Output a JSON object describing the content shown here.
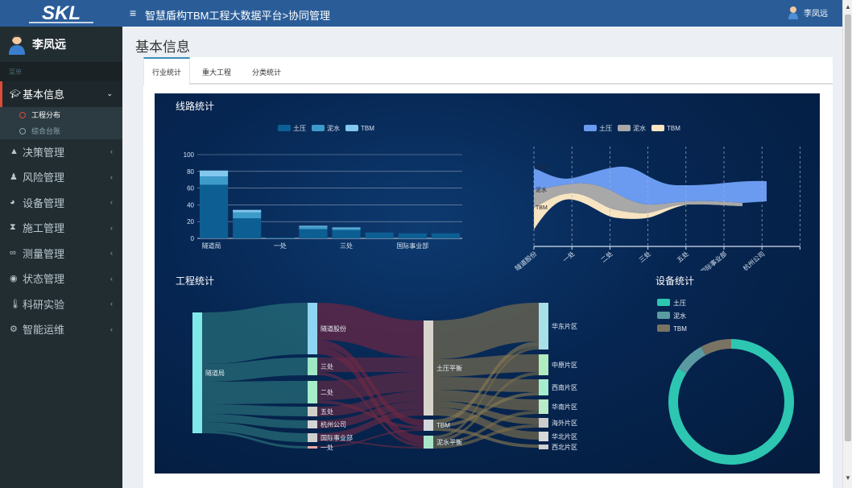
{
  "app": {
    "brand": "SKL",
    "breadcrumb": "智慧盾构TBM工程大数据平台>协同管理",
    "current_user": "李凤远"
  },
  "sidebar": {
    "username": "李凤远",
    "menu_header": "菜单",
    "items": [
      {
        "label": "基本信息",
        "icon": "graduation-cap-icon",
        "active": true,
        "children": [
          {
            "label": "工程分布",
            "active": true
          },
          {
            "label": "综合台账",
            "active": false
          }
        ]
      },
      {
        "label": "决策管理",
        "icon": "graduation-cap-icon"
      },
      {
        "label": "风险管理",
        "icon": "bell-icon"
      },
      {
        "label": "设备管理",
        "icon": "pie-chart-icon"
      },
      {
        "label": "施工管理",
        "icon": "hourglass-icon"
      },
      {
        "label": "测量管理",
        "icon": "binoculars-icon"
      },
      {
        "label": "状态管理",
        "icon": "dashboard-icon"
      },
      {
        "label": "科研实验",
        "icon": "thermometer-icon"
      },
      {
        "label": "智能运维",
        "icon": "gear-icon"
      }
    ]
  },
  "page": {
    "title": "基本信息",
    "tabs": [
      {
        "label": "行业统计",
        "active": true
      },
      {
        "label": "重大工程",
        "active": false
      },
      {
        "label": "分类统计",
        "active": false
      }
    ]
  },
  "dashboard": {
    "line_stats_title": "线路统计",
    "project_stats_title": "工程统计",
    "equipment_stats_title": "设备统计"
  },
  "colors": {
    "topbar": "#2a5d98",
    "sidebar": "#222d32",
    "active_marker": "#dd4b39",
    "dashboard_bg": "#062652",
    "earth_pressure": "#2dc6b1",
    "slurry": "#5b9aa0",
    "tbm": "#7a7363"
  },
  "chart_data": [
    {
      "type": "bar",
      "stacked": true,
      "title": "",
      "categories": [
        "隧道局",
        "",
        "一处",
        "",
        "三处",
        "",
        "国际事业部",
        ""
      ],
      "x_tick_labels_shown": [
        "隧道局",
        "一处",
        "三处",
        "国际事业部"
      ],
      "series": [
        {
          "name": "土压",
          "color": "#0d5f93",
          "values": [
            64,
            24,
            1,
            11,
            10,
            7,
            6,
            6
          ]
        },
        {
          "name": "泥水",
          "color": "#3d9bc9",
          "values": [
            10,
            7,
            0,
            3,
            2,
            0,
            0,
            0
          ]
        },
        {
          "name": "TBM",
          "color": "#82c8ee",
          "values": [
            7,
            3,
            0,
            1,
            1,
            0,
            0,
            0
          ]
        }
      ],
      "ylim": [
        0,
        100
      ],
      "y_ticks": [
        0,
        20,
        40,
        60,
        80,
        100
      ],
      "grid": true,
      "legend": "top-center"
    },
    {
      "type": "area",
      "subtype": "themeRiver",
      "categories": [
        "隧道股份",
        "一处",
        "二处",
        "三处",
        "五处",
        "国际事业部",
        "杭州公司"
      ],
      "series": [
        {
          "name": "土压",
          "color": "#6b9bf0"
        },
        {
          "name": "泥水",
          "color": "#a8a8a8"
        },
        {
          "name": "TBM",
          "color": "#f7e4c0"
        }
      ],
      "inline_labels": [
        "土压",
        "泥水",
        "TBM"
      ],
      "legend": "top-center"
    },
    {
      "type": "sankey",
      "nodes": [
        {
          "name": "隧道局",
          "level": 0
        },
        {
          "name": "隧道股份",
          "level": 1
        },
        {
          "name": "三处",
          "level": 1
        },
        {
          "name": "二处",
          "level": 1
        },
        {
          "name": "五处",
          "level": 1
        },
        {
          "name": "杭州公司",
          "level": 1
        },
        {
          "name": "国际事业部",
          "level": 1
        },
        {
          "name": "一处",
          "level": 1
        },
        {
          "name": "土压平衡",
          "level": 2
        },
        {
          "name": "TBM",
          "level": 2
        },
        {
          "name": "泥水平衡",
          "level": 2
        },
        {
          "name": "华东片区",
          "level": 3
        },
        {
          "name": "中原片区",
          "level": 3
        },
        {
          "name": "西南片区",
          "level": 3
        },
        {
          "name": "华南片区",
          "level": 3
        },
        {
          "name": "海外片区",
          "level": 3
        },
        {
          "name": "华北片区",
          "level": 3
        },
        {
          "name": "西北片区",
          "level": 3
        }
      ]
    },
    {
      "type": "pie",
      "donut": true,
      "legend": "top-left",
      "slices": [
        {
          "name": "土压",
          "value": 84,
          "color": "#2dc6b1"
        },
        {
          "name": "泥水",
          "value": 8,
          "color": "#5b9aa0"
        },
        {
          "name": "TBM",
          "value": 8,
          "color": "#7a7363"
        }
      ]
    }
  ]
}
